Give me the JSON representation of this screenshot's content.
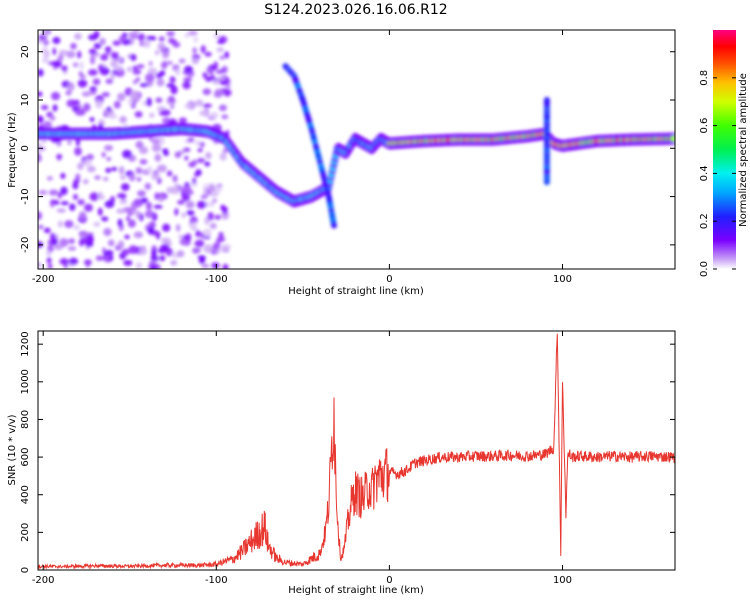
{
  "title": "S124.2023.026.16.06.R12",
  "chart_data": [
    {
      "type": "heatmap",
      "xlabel": "Height of straight line (km)",
      "ylabel": "Frequency (Hz)",
      "xlim": [
        -203,
        165
      ],
      "ylim": [
        -25,
        24.5
      ],
      "x_ticks": [
        -200,
        -100,
        0,
        100
      ],
      "y_ticks": [
        -20,
        -10,
        0,
        10,
        20
      ],
      "colorbar": {
        "label": "Normalized spectral amplitude",
        "range": [
          0,
          1
        ],
        "ticks": [
          0.0,
          0.2,
          0.4,
          0.6,
          0.8
        ]
      },
      "ridge": {
        "x": [
          -200,
          -180,
          -160,
          -140,
          -120,
          -105,
          -95,
          -85,
          -75,
          -65,
          -55,
          -45,
          -35,
          -30,
          -25,
          -20,
          -15,
          -10,
          -5,
          0,
          20,
          40,
          60,
          80,
          90,
          95,
          100,
          120,
          140,
          165
        ],
        "y": [
          3,
          3,
          3,
          3.5,
          4,
          3.5,
          2,
          -3,
          -6,
          -9,
          -11,
          -10,
          -8,
          0,
          -1,
          2,
          1,
          0,
          2,
          1,
          1.5,
          1.8,
          1.8,
          2.5,
          3,
          1,
          0.5,
          1.5,
          1.8,
          2
        ]
      },
      "features": [
        {
          "name": "upper arc",
          "x": [
            -60,
            -55,
            -50,
            -45,
            -40,
            -35,
            -32
          ],
          "y": [
            17,
            15,
            10,
            4,
            -3,
            -10,
            -16
          ]
        },
        {
          "name": "spike",
          "x": [
            91,
            91
          ],
          "y": [
            -7,
            10
          ]
        }
      ],
      "grid": false
    },
    {
      "type": "line",
      "xlabel": "Height of straight line (km)",
      "ylabel": "SNR (10 * v/v)",
      "xlim": [
        -203,
        165
      ],
      "ylim": [
        0,
        1270
      ],
      "x_ticks": [
        -200,
        -100,
        0,
        100
      ],
      "y_ticks": [
        0,
        200,
        400,
        600,
        800,
        1000,
        1200
      ],
      "color": "#e8362f",
      "x": [
        -203,
        -190,
        -170,
        -150,
        -130,
        -110,
        -100,
        -90,
        -85,
        -80,
        -75,
        -72,
        -70,
        -65,
        -60,
        -50,
        -40,
        -37,
        -35,
        -33,
        -32,
        -31,
        -30,
        -29,
        -28,
        -26,
        -24,
        -22,
        -20,
        -18,
        -15,
        -12,
        -10,
        -8,
        -5,
        0,
        5,
        10,
        15,
        20,
        25,
        30,
        40,
        50,
        60,
        70,
        80,
        90,
        95,
        97,
        98,
        99,
        100,
        101,
        102,
        103,
        104,
        105,
        110,
        120,
        130,
        140,
        150,
        165
      ],
      "y": [
        20,
        18,
        22,
        20,
        25,
        25,
        30,
        60,
        100,
        150,
        200,
        230,
        130,
        60,
        40,
        30,
        90,
        200,
        350,
        700,
        870,
        500,
        300,
        150,
        60,
        120,
        250,
        350,
        420,
        400,
        380,
        450,
        420,
        480,
        500,
        520,
        510,
        530,
        570,
        580,
        590,
        600,
        600,
        605,
        605,
        610,
        605,
        615,
        650,
        1280,
        700,
        100,
        1000,
        650,
        300,
        600,
        620,
        600,
        605,
        600,
        605,
        600,
        605,
        600
      ],
      "grid": false
    }
  ]
}
